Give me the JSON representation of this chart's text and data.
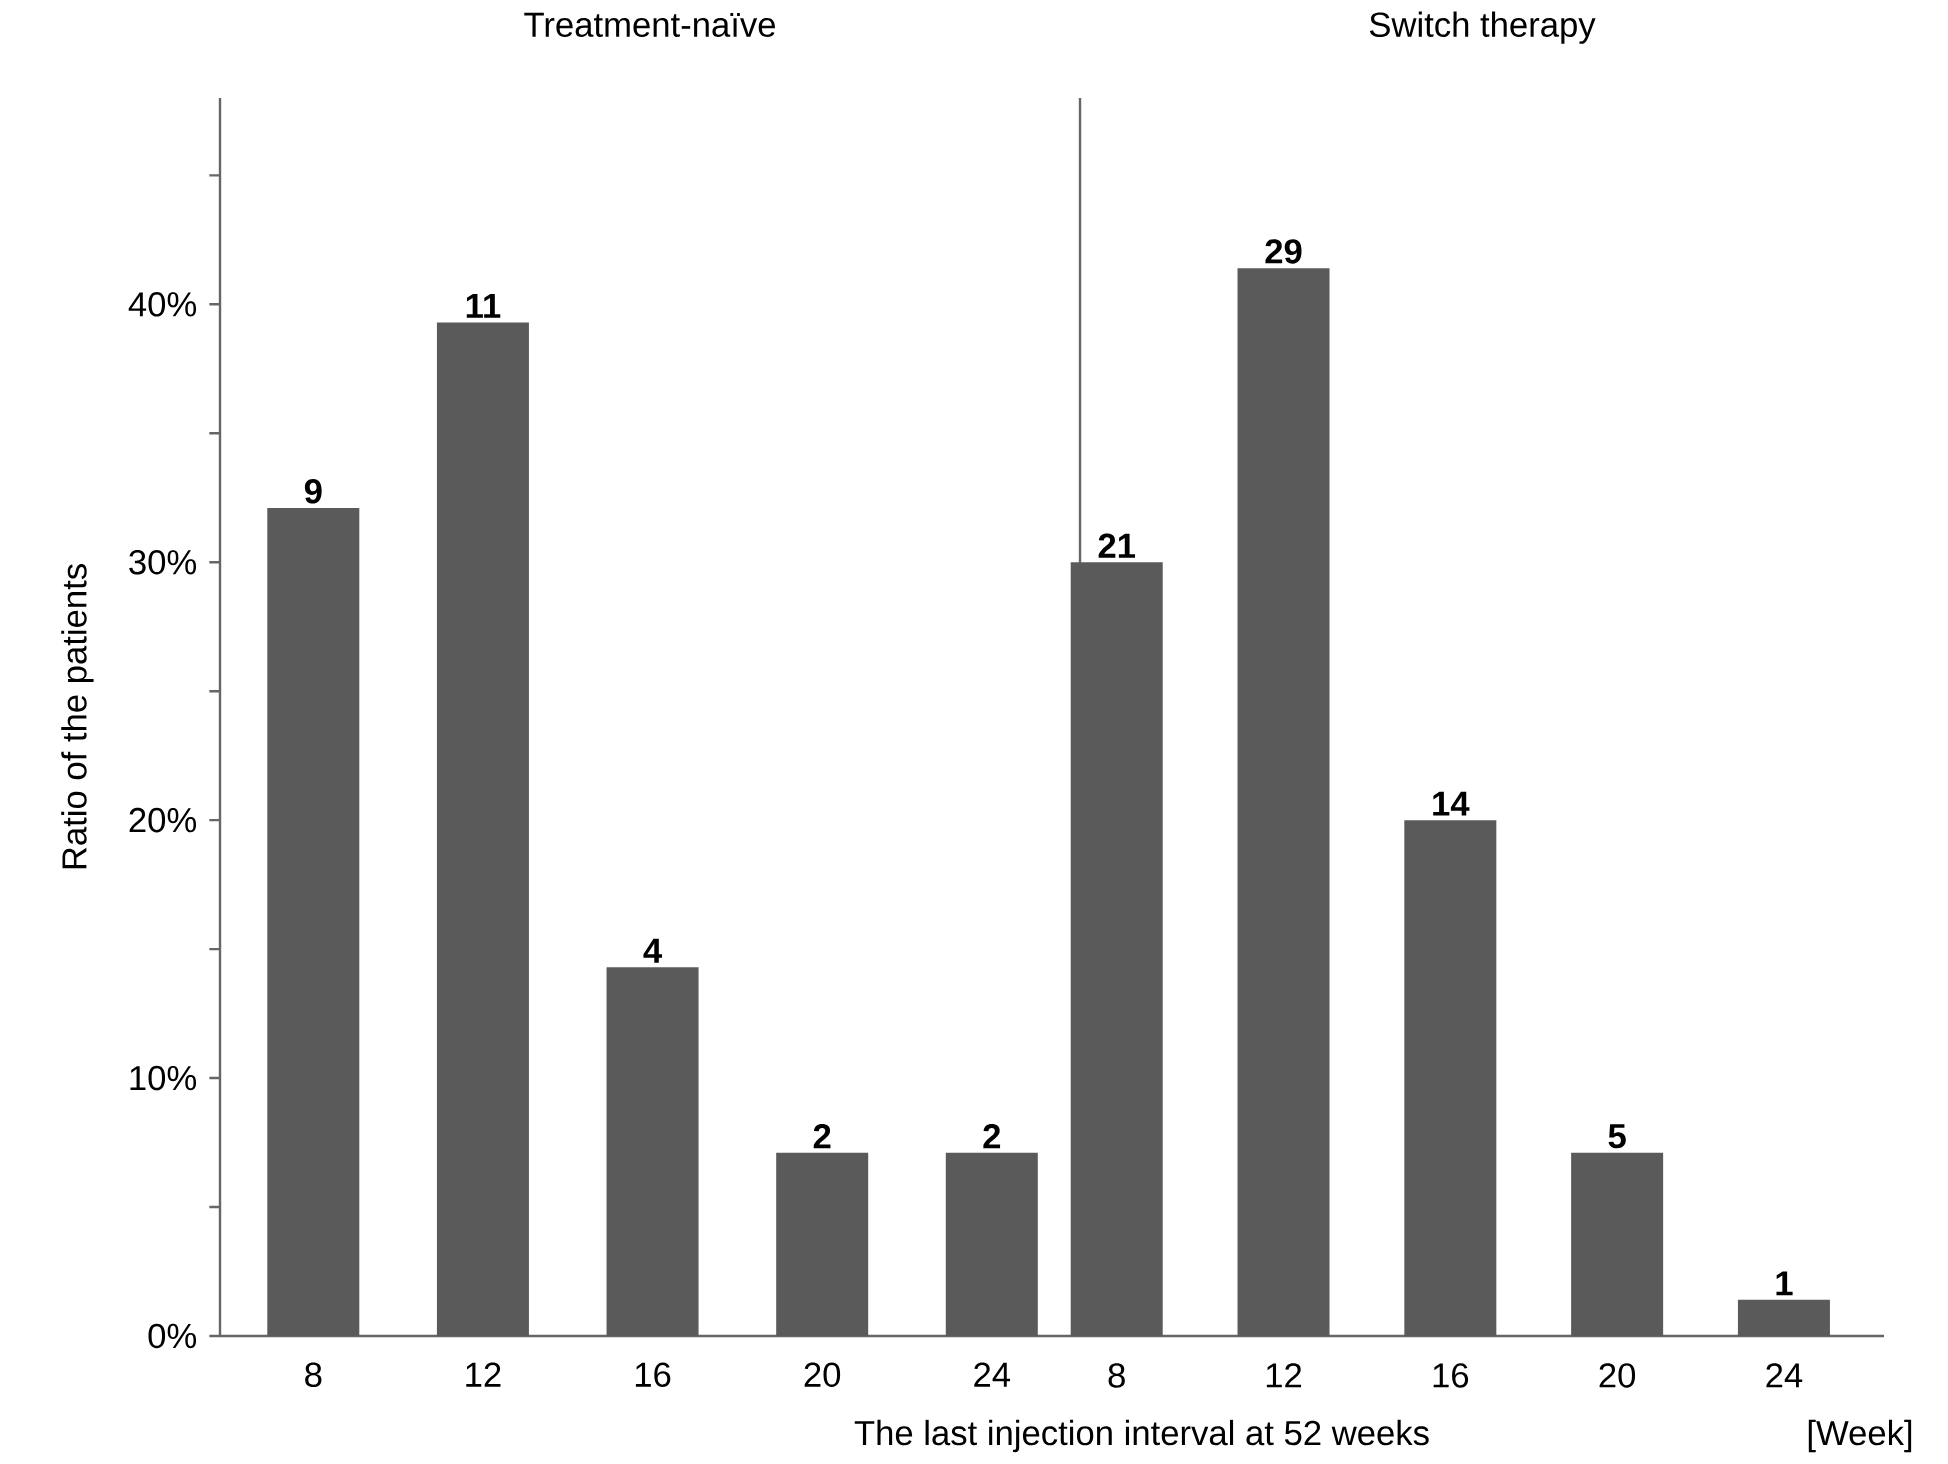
{
  "chart_data": [
    {
      "type": "bar",
      "title": "Treatment-naïve",
      "ylabel": "Ratio of the patients",
      "xlabel": "The last injection interval at 52 weeks",
      "categories": [
        "8",
        "12",
        "16",
        "20",
        "24"
      ],
      "color": "#5a5a5a",
      "values": [
        32.1,
        39.3,
        14.3,
        7.1,
        7.1
      ],
      "ylim": [
        0,
        48
      ],
      "yticks": [
        {
          "value": 0,
          "label": "0%"
        },
        {
          "value": 5,
          "label": null
        },
        {
          "value": 10,
          "label": "10%"
        },
        {
          "value": 15,
          "label": null
        },
        {
          "value": 20,
          "label": "20%"
        },
        {
          "value": 25,
          "label": null
        },
        {
          "value": 30,
          "label": "30%"
        },
        {
          "value": 35,
          "label": null
        },
        {
          "value": 40,
          "label": "40%"
        },
        {
          "value": 45,
          "label": null
        }
      ],
      "annotations": [
        {
          "text": "9",
          "x": "8",
          "y": 32.1
        },
        {
          "text": "11",
          "x": "12",
          "y": 39.3
        },
        {
          "text": "4",
          "x": "16",
          "y": 14.3
        },
        {
          "text": "2",
          "x": "20",
          "y": 7.1
        },
        {
          "text": "2",
          "x": "24",
          "y": 7.1
        }
      ]
    },
    {
      "type": "bar",
      "title": "Switch therapy",
      "categories": [
        "8",
        "12",
        "16",
        "20",
        "24"
      ],
      "color": "#5a5a5a",
      "values": [
        30.0,
        41.4,
        20.0,
        7.1,
        1.4
      ],
      "ylim": [
        0,
        48
      ],
      "tick_labels": "x",
      "annotations": [
        "[Week]",
        {
          "text": "21",
          "x": "8",
          "y": 30.0
        },
        {
          "text": "29",
          "x": "12",
          "y": 41.4
        },
        {
          "text": "14",
          "x": "16",
          "y": 20.0
        },
        {
          "text": "5",
          "x": "20",
          "y": 7.1
        },
        {
          "text": "1",
          "x": "24",
          "y": 1.4
        }
      ]
    }
  ]
}
